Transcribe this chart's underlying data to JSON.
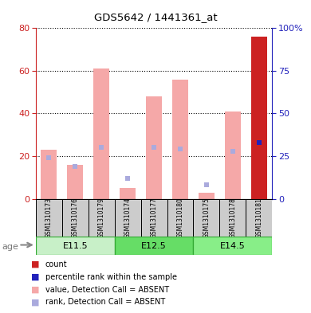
{
  "title": "GDS5642 / 1441361_at",
  "samples": [
    "GSM1310173",
    "GSM1310176",
    "GSM1310179",
    "GSM1310174",
    "GSM1310177",
    "GSM1310180",
    "GSM1310175",
    "GSM1310178",
    "GSM1310181"
  ],
  "age_groups": [
    {
      "label": "E11.5",
      "start": 0,
      "end": 3,
      "color": "#c8f0c8"
    },
    {
      "label": "E12.5",
      "start": 3,
      "end": 6,
      "color": "#66dd66"
    },
    {
      "label": "E14.5",
      "start": 6,
      "end": 9,
      "color": "#88ee88"
    }
  ],
  "bar_values": [
    23,
    16,
    61,
    5,
    48,
    56,
    3,
    41,
    76
  ],
  "rank_dots": [
    24,
    19,
    30,
    12,
    30,
    29,
    8,
    28,
    33
  ],
  "bar_color": "#f5a8a8",
  "rank_dot_color": "#aaaadd",
  "count_bar_color": "#cc2222",
  "percentile_dot_color": "#2222bb",
  "ylim_left": [
    0,
    80
  ],
  "ylim_right": [
    0,
    100
  ],
  "yticks_left": [
    0,
    20,
    40,
    60,
    80
  ],
  "yticks_right": [
    0,
    25,
    50,
    75,
    100
  ],
  "left_tick_color": "#cc2222",
  "right_tick_color": "#2222bb",
  "sample_bg_color": "#cccccc",
  "age_border_color": "#33aa33",
  "legend_items": [
    {
      "label": "count",
      "color": "#cc2222"
    },
    {
      "label": "percentile rank within the sample",
      "color": "#2222bb"
    },
    {
      "label": "value, Detection Call = ABSENT",
      "color": "#f5a8a8"
    },
    {
      "label": "rank, Detection Call = ABSENT",
      "color": "#aaaadd"
    }
  ]
}
